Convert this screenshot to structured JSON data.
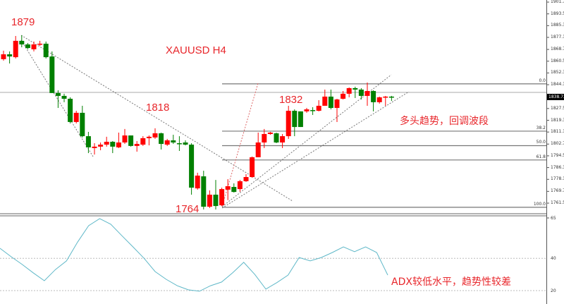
{
  "title": "XAUUSD  H4",
  "annotations": {
    "high": "1879",
    "mid": "1818",
    "low": "1764",
    "recent": "1832",
    "trend_note": "多头趋势，回调波段",
    "adx_note": "ADX较低水平，趋势性较差"
  },
  "price_axis": [
    "1901.70",
    "1893.50",
    "1885.30",
    "1877.10",
    "1868.70",
    "1860.50",
    "1852.30",
    "1844.10",
    "1835.70",
    "1827.50",
    "1819.30",
    "1811.10",
    "1802.70",
    "1794.50",
    "1786.30",
    "1778.10",
    "1769.70",
    "1761.50"
  ],
  "current_price": "1838.72",
  "fib_levels": [
    {
      "label": "0.0",
      "price": 1844.7
    },
    {
      "label": "38.2",
      "price": 1811.7
    },
    {
      "label": "50.0",
      "price": 1801.6
    },
    {
      "label": "61.8",
      "price": 1791.6
    },
    {
      "label": "100.0",
      "price": 1758.6
    }
  ],
  "adx_axis": [
    "65",
    "40",
    "20"
  ],
  "colors": {
    "up": "#ff0000",
    "down": "#008000",
    "text": "#e8262b",
    "adx": "#5fb8c8"
  },
  "chart_data": {
    "type": "candlestick",
    "symbol": "XAUUSD",
    "timeframe": "H4",
    "ylim": [
      1761.5,
      1901.7
    ],
    "candles_ohlc": [
      [
        1861.9,
        1867.8,
        1860.9,
        1865.3
      ],
      [
        1865.3,
        1867.3,
        1858.9,
        1863.8
      ],
      [
        1863.3,
        1878.1,
        1862.4,
        1874.7
      ],
      [
        1874.7,
        1878.6,
        1870.2,
        1872.2
      ],
      [
        1872.2,
        1873.2,
        1868.8,
        1869.7
      ],
      [
        1868.8,
        1874.2,
        1867.3,
        1872.2
      ],
      [
        1872.2,
        1874.7,
        1871.2,
        1872.7
      ],
      [
        1872.7,
        1874.2,
        1862.4,
        1863.3
      ],
      [
        1863.8,
        1867.3,
        1838.3,
        1838.3
      ],
      [
        1838.3,
        1840.2,
        1827.9,
        1836.3
      ],
      [
        1836.3,
        1837.8,
        1831.9,
        1834.3
      ],
      [
        1834.3,
        1835.3,
        1817.1,
        1818.1
      ],
      [
        1818.1,
        1825.9,
        1817.1,
        1824.5
      ],
      [
        1824.5,
        1829.4,
        1807.3,
        1808.2
      ],
      [
        1808.2,
        1811.2,
        1796.4,
        1800.4
      ],
      [
        1799.9,
        1803.3,
        1795.4,
        1800.9
      ],
      [
        1800.9,
        1803.8,
        1798.4,
        1802.3
      ],
      [
        1802.3,
        1807.8,
        1800.9,
        1804.3
      ],
      [
        1804.3,
        1804.8,
        1796.4,
        1800.9
      ],
      [
        1800.4,
        1810.7,
        1799.9,
        1803.8
      ],
      [
        1803.8,
        1813.2,
        1802.8,
        1808.7
      ],
      [
        1808.7,
        1808.7,
        1800.9,
        1801.4
      ],
      [
        1801.4,
        1804.8,
        1797.4,
        1802.8
      ],
      [
        1802.3,
        1808.2,
        1801.4,
        1806.8
      ],
      [
        1806.8,
        1808.7,
        1801.8,
        1807.8
      ],
      [
        1807.3,
        1813.7,
        1806.3,
        1810.2
      ],
      [
        1810.2,
        1810.7,
        1798.9,
        1802.8
      ],
      [
        1802.3,
        1806.3,
        1801.4,
        1805.3
      ],
      [
        1805.3,
        1809.2,
        1802.8,
        1803.8
      ],
      [
        1803.3,
        1808.2,
        1797.9,
        1802.8
      ],
      [
        1803.8,
        1805.3,
        1801.8,
        1802.3
      ],
      [
        1802.3,
        1803.3,
        1767.4,
        1772.3
      ],
      [
        1771.8,
        1782.7,
        1770.9,
        1780.7
      ],
      [
        1780.2,
        1784.1,
        1757.1,
        1759.0
      ],
      [
        1759.0,
        1770.4,
        1758.1,
        1767.4
      ],
      [
        1767.4,
        1777.7,
        1757.1,
        1759.5
      ],
      [
        1760.0,
        1772.3,
        1759.5,
        1771.3
      ],
      [
        1770.9,
        1778.2,
        1763.6,
        1773.3
      ],
      [
        1772.8,
        1775.3,
        1768.9,
        1769.3
      ],
      [
        1771.3,
        1777.7,
        1769.4,
        1776.8
      ],
      [
        1776.8,
        1781.7,
        1776.3,
        1779.7
      ],
      [
        1779.7,
        1794.0,
        1779.2,
        1793.5
      ],
      [
        1793.5,
        1810.7,
        1793.5,
        1803.8
      ],
      [
        1803.8,
        1813.2,
        1799.9,
        1809.7
      ],
      [
        1809.7,
        1811.2,
        1809.2,
        1810.7
      ],
      [
        1810.2,
        1810.7,
        1803.3,
        1803.8
      ],
      [
        1803.8,
        1809.7,
        1799.9,
        1808.2
      ],
      [
        1808.2,
        1829.4,
        1806.3,
        1825.9
      ],
      [
        1825.9,
        1826.9,
        1808.2,
        1814.6
      ],
      [
        1825.5,
        1825.5,
        1814.6,
        1814.6
      ],
      [
        1825.5,
        1827.9,
        1824.5,
        1826.9
      ],
      [
        1826.4,
        1828.4,
        1823.0,
        1825.9
      ],
      [
        1825.9,
        1833.3,
        1825.5,
        1829.4
      ],
      [
        1829.4,
        1840.7,
        1829.4,
        1835.8
      ],
      [
        1835.8,
        1840.7,
        1826.9,
        1827.9
      ],
      [
        1827.9,
        1834.3,
        1818.1,
        1833.8
      ],
      [
        1834.3,
        1839.7,
        1833.8,
        1837.8
      ],
      [
        1837.8,
        1842.2,
        1835.3,
        1841.7
      ],
      [
        1841.7,
        1842.7,
        1834.8,
        1840.7
      ],
      [
        1840.7,
        1841.7,
        1833.8,
        1836.3
      ],
      [
        1836.3,
        1845.6,
        1829.4,
        1839.7
      ],
      [
        1839.7,
        1840.2,
        1825.5,
        1831.9
      ],
      [
        1831.9,
        1835.8,
        1830.9,
        1835.3
      ],
      [
        1835.3,
        1836.3,
        1829.4,
        1835.8
      ],
      [
        1835.8,
        1836.3,
        1832.8,
        1835.3
      ]
    ],
    "adx": {
      "ylim": [
        15,
        65
      ],
      "values": [
        46.2,
        41,
        36.2,
        31,
        26.1,
        33,
        38.4,
        50,
        60.2,
        64.6,
        61.1,
        54,
        47.1,
        40,
        31.8,
        27,
        23,
        20.5,
        19.6,
        23,
        25.3,
        31,
        37.5,
        30,
        20.9,
        25,
        29.6,
        40.5,
        38.4,
        40.5,
        43.6,
        47.1,
        44.1,
        47.1,
        43.6,
        29.6
      ]
    }
  }
}
